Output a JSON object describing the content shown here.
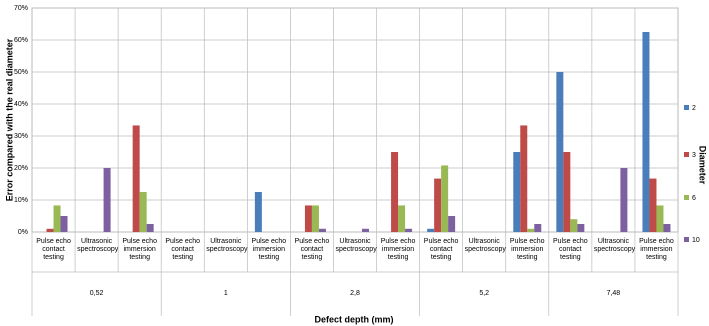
{
  "chart_data": {
    "type": "bar",
    "x_title": "Defect depth (mm)",
    "y_title": "Error compared with the real diameter",
    "legend_title": "Diameter",
    "category_groups": [
      "0,52",
      "1",
      "2,8",
      "5,2",
      "7,48"
    ],
    "categories": [
      "Pulse echo contact testing",
      "Ultrasonic spectroscopy",
      "Pulse echo immersion testing",
      "Pulse echo contact testing",
      "Ultrasonic spectroscopy",
      "Pulse echo immersion testing",
      "Pulse echo contact testing",
      "Ultrasonic spectroscopy",
      "Pulse echo immersion testing",
      "Pulse echo contact testing",
      "Ultrasonic spectroscopy",
      "Pulse echo immersion testing",
      "Pulse echo contact testing",
      "Ultrasonic spectroscopy",
      "Pulse echo immersion testing"
    ],
    "series": [
      {
        "name": "2",
        "color": "#4a7ebb",
        "values": [
          0,
          0,
          0,
          0,
          0,
          12.5,
          0,
          0,
          0,
          1,
          0,
          25,
          50,
          0,
          62.5
        ]
      },
      {
        "name": "3",
        "color": "#be4b48",
        "values": [
          1,
          0,
          33.3,
          0,
          0,
          0,
          8.3,
          0,
          25,
          16.7,
          0,
          33.3,
          25,
          0,
          16.7
        ]
      },
      {
        "name": "6",
        "color": "#98b954",
        "values": [
          8.3,
          0,
          12.5,
          0,
          0,
          0,
          8.3,
          0,
          8.3,
          20.8,
          0,
          1,
          4,
          0,
          8.3
        ]
      },
      {
        "name": "10",
        "color": "#7d60a0",
        "values": [
          5,
          20,
          2.5,
          0,
          0,
          0,
          1,
          1,
          1,
          5,
          0,
          2.5,
          2.5,
          20,
          2.5
        ]
      }
    ],
    "ylim": [
      0,
      70
    ],
    "yticks": [
      {
        "value": 0,
        "label": "0%"
      },
      {
        "value": 10,
        "label": "10%"
      },
      {
        "value": 20,
        "label": "20%"
      },
      {
        "value": 30,
        "label": "30%"
      },
      {
        "value": 40,
        "label": "40%"
      },
      {
        "value": 50,
        "label": "50%"
      },
      {
        "value": 60,
        "label": "60%"
      },
      {
        "value": 70,
        "label": "70%"
      }
    ],
    "grid": true
  }
}
